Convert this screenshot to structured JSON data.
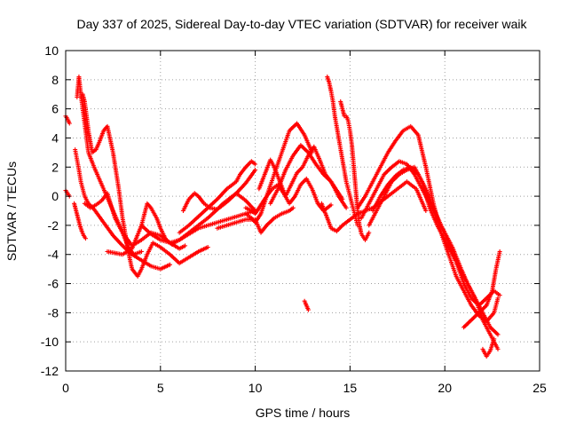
{
  "chart_data": {
    "type": "scatter",
    "title": "Day 337 of 2025, Sidereal Day-to-day VTEC variation (SDTVAR) for receiver waik",
    "xlabel": "GPS time / hours",
    "ylabel": "SDTVAR / TECUs",
    "xlim": [
      0,
      25
    ],
    "ylim": [
      -12,
      10
    ],
    "xticks": [
      0,
      5,
      10,
      15,
      20,
      25
    ],
    "yticks": [
      -12,
      -10,
      -8,
      -6,
      -4,
      -2,
      0,
      2,
      4,
      6,
      8,
      10
    ],
    "grid": true,
    "marker": "+",
    "color": "#ff0000",
    "series": [
      {
        "x": [
          0.0,
          0.1,
          0.2
        ],
        "y": [
          5.5,
          5.3,
          5.0
        ]
      },
      {
        "x": [
          0.0,
          0.1,
          0.2
        ],
        "y": [
          0.4,
          0.2,
          0.0
        ]
      },
      {
        "x": [
          0.45,
          0.55,
          0.65,
          0.75,
          0.85,
          0.95,
          1.05
        ],
        "y": [
          -0.5,
          -1.0,
          -1.5,
          -2.0,
          -2.4,
          -2.7,
          -2.9
        ]
      },
      {
        "x": [
          0.5,
          0.6,
          0.7,
          0.8,
          1.0,
          1.2,
          1.5,
          2.0,
          2.5,
          3.0,
          3.5,
          4.0,
          4.5,
          5.0,
          5.5
        ],
        "y": [
          3.2,
          2.5,
          1.8,
          1.0,
          0.0,
          -0.5,
          -0.9,
          -1.8,
          -2.7,
          -3.4,
          -4.0,
          -4.4,
          -4.8,
          -5.0,
          -4.7
        ]
      },
      {
        "x": [
          0.6,
          0.7,
          0.8,
          0.9,
          1.0,
          1.1,
          1.2,
          1.5,
          2.0,
          2.5,
          3.0,
          3.3,
          3.6,
          4.0
        ],
        "y": [
          6.8,
          8.2,
          7.0,
          6.0,
          5.0,
          4.0,
          3.0,
          2.0,
          0.5,
          -1.0,
          -2.5,
          -3.5,
          -4.0,
          -3.8
        ]
      },
      {
        "x": [
          0.8,
          0.9,
          1.0,
          1.2,
          1.4,
          1.6,
          1.8,
          2.0,
          2.2,
          2.5,
          2.8,
          3.0,
          3.3,
          3.5,
          3.8,
          4.0,
          4.3,
          4.6,
          5.0,
          5.5,
          6.0,
          6.5,
          7.0,
          7.5
        ],
        "y": [
          6.8,
          7.0,
          6.5,
          4.5,
          3.0,
          3.2,
          3.8,
          4.5,
          4.8,
          3.0,
          0.5,
          -1.5,
          -3.8,
          -5.0,
          -5.5,
          -5.0,
          -4.0,
          -3.2,
          -3.5,
          -4.0,
          -4.6,
          -4.2,
          -3.8,
          -3.5
        ]
      },
      {
        "x": [
          1.0,
          1.3,
          1.6,
          1.9,
          2.2,
          2.6,
          3.0,
          3.5,
          4.0,
          4.5,
          5.0,
          5.5,
          6.0,
          6.3
        ],
        "y": [
          -0.5,
          -0.8,
          -0.6,
          -0.3,
          0.2,
          -1.5,
          -2.5,
          -3.4,
          -3.0,
          -2.5,
          -2.7,
          -3.2,
          -3.6,
          -3.4
        ]
      },
      {
        "x": [
          2.2,
          2.6,
          3.0,
          3.5,
          4.0,
          4.3,
          4.5,
          4.8,
          5.0,
          5.3,
          5.6,
          6.0,
          6.5,
          7.0,
          7.5,
          8.0,
          8.5,
          9.0,
          9.5,
          10.0
        ],
        "y": [
          -3.8,
          -3.9,
          -4.0,
          -3.6,
          -2.0,
          -0.5,
          -0.8,
          -1.5,
          -2.2,
          -3.0,
          -3.3,
          -3.0,
          -2.6,
          -2.2,
          -2.0,
          -1.8,
          -1.6,
          -1.4,
          -1.2,
          -1.0
        ]
      },
      {
        "x": [
          4.0,
          4.5,
          5.0,
          5.5,
          6.0,
          6.5,
          7.0,
          7.5,
          8.0,
          8.5,
          9.0,
          9.5,
          10.0
        ],
        "y": [
          -2.0,
          -2.6,
          -3.0,
          -3.2,
          -3.0,
          -2.5,
          -2.0,
          -1.5,
          -0.9,
          -0.4,
          0.2,
          0.9,
          1.8
        ]
      },
      {
        "x": [
          6.2,
          6.5,
          6.8,
          7.0,
          7.3,
          7.6,
          8.0,
          8.3,
          8.6,
          9.0,
          9.5,
          10.0
        ],
        "y": [
          -1.0,
          -0.2,
          0.2,
          0.0,
          -0.5,
          -0.8,
          -0.9,
          -0.5,
          -0.2,
          0.2,
          -0.3,
          -1.0
        ]
      },
      {
        "x": [
          6.0,
          6.5,
          7.0,
          7.5,
          8.0,
          8.5,
          9.0,
          9.2,
          9.5,
          9.8,
          10.0
        ],
        "y": [
          -2.5,
          -2.0,
          -1.4,
          -0.8,
          -0.2,
          0.5,
          1.0,
          1.5,
          2.0,
          2.4,
          2.2
        ]
      },
      {
        "x": [
          8.0,
          8.5,
          9.0,
          9.5,
          10.0,
          10.3,
          10.6,
          11.0,
          11.4,
          11.8,
          12.0
        ],
        "y": [
          -2.2,
          -2.0,
          -1.8,
          -1.6,
          -1.6,
          -2.5,
          -2.0,
          -1.5,
          -1.2,
          -1.0,
          -0.8
        ]
      },
      {
        "x": [
          9.5,
          9.8,
          10.0,
          10.3,
          10.6,
          11.0,
          11.4,
          11.8,
          12.2,
          12.6,
          13.0
        ],
        "y": [
          -1.2,
          -1.5,
          -1.8,
          -1.2,
          0.0,
          1.5,
          3.0,
          4.5,
          5.0,
          4.2,
          3.0
        ]
      },
      {
        "x": [
          9.5,
          9.8,
          10.0,
          10.3,
          10.6,
          10.9,
          11.2,
          11.5,
          11.8,
          12.1,
          12.4,
          12.7,
          13.0,
          13.3,
          13.6,
          14.0
        ],
        "y": [
          -0.8,
          -1.0,
          -1.2,
          -0.6,
          0.0,
          0.5,
          0.8,
          0.2,
          -0.5,
          0.0,
          0.8,
          1.2,
          0.5,
          -0.5,
          -1.0,
          -0.6
        ]
      },
      {
        "x": [
          10.2,
          10.5,
          10.8,
          11.0,
          11.3,
          11.6,
          11.9,
          12.2,
          12.5,
          12.8,
          13.1,
          13.4,
          13.7,
          14.0,
          14.3,
          14.6
        ],
        "y": [
          0.5,
          1.5,
          2.5,
          2.0,
          1.0,
          0.0,
          0.8,
          1.6,
          2.0,
          2.8,
          3.4,
          2.5,
          1.5,
          1.0,
          0.4,
          -0.2
        ]
      },
      {
        "x": [
          10.8,
          11.2,
          11.6,
          12.0,
          12.4,
          12.8,
          13.2,
          13.6,
          14.0,
          14.4,
          14.8
        ],
        "y": [
          -0.5,
          0.5,
          1.8,
          2.8,
          3.5,
          3.0,
          2.2,
          1.5,
          1.0,
          0.0,
          -0.8
        ]
      },
      {
        "x": [
          12.6,
          12.7,
          12.8
        ],
        "y": [
          -7.2,
          -7.5,
          -7.8
        ]
      },
      {
        "x": [
          13.8,
          13.9,
          14.0,
          14.1,
          14.2,
          14.4,
          14.6,
          14.8,
          15.0,
          15.2,
          15.4
        ],
        "y": [
          8.2,
          7.8,
          7.2,
          6.5,
          5.5,
          4.0,
          2.5,
          1.0,
          0.0,
          -1.0,
          -2.0
        ]
      },
      {
        "x": [
          14.5,
          14.6,
          14.7,
          14.8,
          14.9,
          15.0,
          15.1,
          15.2,
          15.3,
          15.4,
          15.5,
          15.6,
          15.8,
          16.0
        ],
        "y": [
          6.5,
          6.0,
          5.5,
          5.5,
          5.2,
          4.5,
          3.5,
          2.0,
          0.5,
          -1.0,
          -2.0,
          -2.6,
          -3.0,
          -2.5
        ]
      },
      {
        "x": [
          13.5,
          13.8,
          14.0,
          14.3,
          14.6,
          15.0,
          15.4,
          15.8,
          16.2,
          16.6,
          17.0,
          17.5,
          18.0,
          18.5,
          19.0
        ],
        "y": [
          -0.5,
          -1.5,
          -2.2,
          -2.4,
          -2.0,
          -1.6,
          -1.2,
          -1.0,
          -0.8,
          -0.4,
          0.0,
          0.5,
          1.0,
          0.5,
          -1.0
        ]
      },
      {
        "x": [
          15.4,
          15.8,
          16.2,
          16.6,
          17.0,
          17.4,
          17.8,
          18.2,
          18.6,
          19.0,
          19.4,
          19.8,
          20.2,
          20.6,
          21.0,
          21.4,
          21.8,
          22.2,
          22.6,
          22.8
        ],
        "y": [
          -0.8,
          0.0,
          1.0,
          2.0,
          3.0,
          3.8,
          4.5,
          4.8,
          4.2,
          2.0,
          -0.5,
          -2.5,
          -4.0,
          -5.5,
          -6.5,
          -7.5,
          -8.2,
          -8.6,
          -8.0,
          -7.0
        ]
      },
      {
        "x": [
          15.6,
          16.0,
          16.4,
          16.8,
          17.2,
          17.6,
          18.0,
          18.4,
          18.8,
          19.2,
          19.6,
          20.0,
          20.4,
          20.8,
          21.2,
          21.6,
          22.0,
          22.4,
          22.8
        ],
        "y": [
          -1.5,
          -0.5,
          0.5,
          1.5,
          2.0,
          2.4,
          2.2,
          1.5,
          0.5,
          -0.5,
          -1.5,
          -2.5,
          -3.5,
          -4.8,
          -6.0,
          -7.0,
          -8.0,
          -9.0,
          -9.5
        ]
      },
      {
        "x": [
          16.0,
          16.4,
          16.8,
          17.2,
          17.6,
          18.0,
          18.4,
          18.8,
          19.2,
          19.6,
          20.0,
          20.4,
          20.8,
          21.2,
          21.6,
          22.0,
          22.4,
          22.8
        ],
        "y": [
          -2.0,
          -1.0,
          0.0,
          1.0,
          1.5,
          1.8,
          2.0,
          1.0,
          -0.8,
          -2.0,
          -3.0,
          -4.0,
          -5.0,
          -6.0,
          -7.0,
          -8.5,
          -9.5,
          -10.5
        ]
      },
      {
        "x": [
          16.2,
          16.6,
          17.0,
          17.4,
          17.8,
          18.2,
          18.6,
          19.0,
          19.4,
          19.8,
          20.2,
          20.6,
          21.0,
          21.4,
          21.8,
          22.2,
          22.6,
          22.9
        ],
        "y": [
          -1.0,
          0.0,
          0.8,
          1.4,
          1.8,
          2.0,
          1.5,
          0.5,
          -0.8,
          -2.0,
          -3.2,
          -4.5,
          -6.0,
          -7.0,
          -7.5,
          -7.0,
          -6.5,
          -6.8
        ]
      },
      {
        "x": [
          21.0,
          21.4,
          21.8,
          22.2,
          22.5,
          22.7,
          22.9
        ],
        "y": [
          -9.0,
          -8.5,
          -8.0,
          -7.5,
          -6.5,
          -5.0,
          -3.8
        ]
      },
      {
        "x": [
          22.0,
          22.2,
          22.4,
          22.6
        ],
        "y": [
          -10.5,
          -11.0,
          -10.6,
          -9.8
        ]
      }
    ]
  }
}
